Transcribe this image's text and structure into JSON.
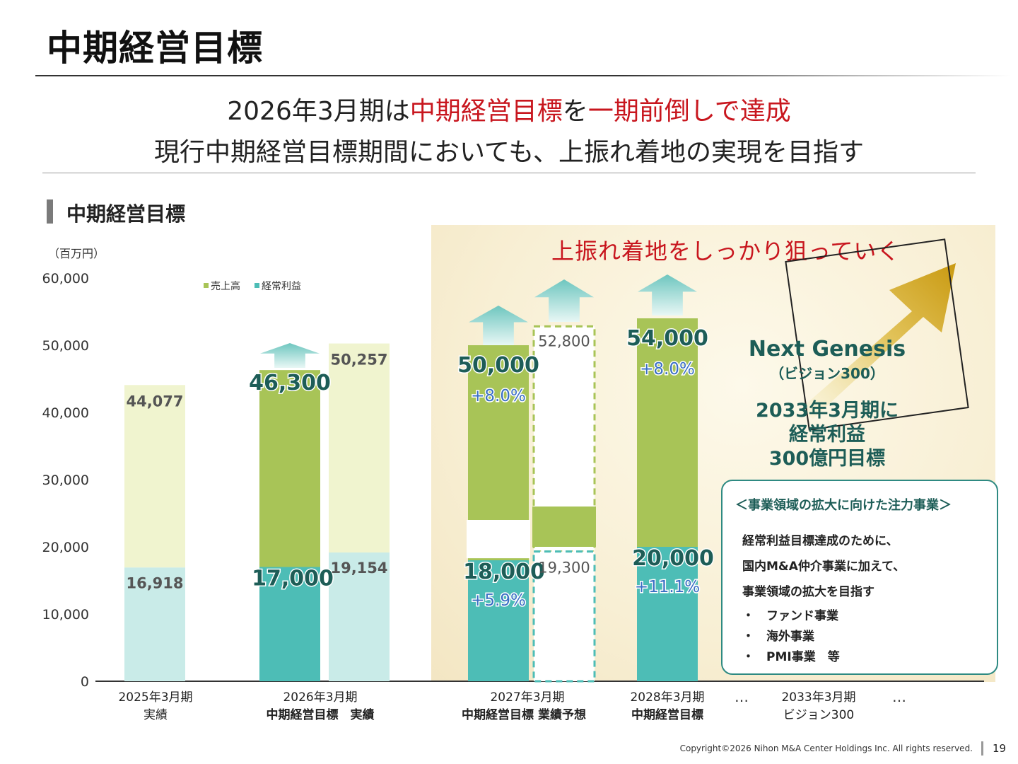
{
  "page_title": "中期経営目標",
  "headline": {
    "line1_a": "2026年3月期は",
    "line1_b": "中期経営目標",
    "line1_c": "を",
    "line1_d": "一期前倒しで達成",
    "line2": "現行中期経営目標期間においても、上振れ着地の実現を目指す"
  },
  "section_title": "中期経営目標",
  "upside_text": "上振れ着地をしっかり狙っていく",
  "next_genesis": {
    "title": "Next Genesis",
    "subtitle": "（ビジョン300）",
    "line1": "2033年3月期に",
    "line2": "経常利益",
    "line3": "300億円目標"
  },
  "focus_box": {
    "title": "＜事業領域の拡大に向けた注力事業＞",
    "lines": [
      "経常利益目標達成のために、",
      "国内M&A仲介事業に加えて、",
      "事業領域の拡大を目指す"
    ],
    "bullets": [
      "・　ファンド事業",
      "・　海外事業",
      "・　PMI事業　等"
    ]
  },
  "footer": "Copyright©2026 Nihon M&A Center Holdings Inc. All rights reserved.",
  "page_number": "19",
  "colors": {
    "sales_actual": "#f0f4cf",
    "sales_target": "#a8c457",
    "profit_actual": "#c9ebe8",
    "profit_target": "#4dbdb6",
    "arrow": "#7fd0ca",
    "accent_red": "#c8161e",
    "growth_blue": "#3a6fc4",
    "label_green": "#1d5d57"
  },
  "chart_data": {
    "type": "bar",
    "unit_label": "（百万円）",
    "ylim": [
      0,
      60000
    ],
    "y_ticks": [
      "0",
      "10,000",
      "20,000",
      "30,000",
      "40,000",
      "50,000",
      "60,000"
    ],
    "legend": [
      {
        "name": "売上高",
        "color": "#a8c457"
      },
      {
        "name": "経常利益",
        "color": "#4dbdb6"
      }
    ],
    "x_groups": [
      {
        "line1": "2025年3月期",
        "line2": "実績"
      },
      {
        "line1": "2026年3月期",
        "line2": "中期経営目標　実績"
      },
      {
        "line1": "2027年3月期",
        "line2": "中期経営目標  業績予想"
      },
      {
        "line1": "2028年3月期",
        "line2": "中期経営目標"
      },
      {
        "line1": "2033年3月期",
        "line2": "ビジョン300"
      }
    ],
    "ellipsis": [
      "…",
      "…"
    ],
    "bars": [
      {
        "group": "2025年3月期 実績",
        "kind": "actual",
        "sales": 44077,
        "profit": 16918,
        "sales_label": "44,077",
        "profit_label": "16,918"
      },
      {
        "group": "2026年3月期 中期経営目標",
        "kind": "target",
        "sales": 46300,
        "profit": 17000,
        "sales_label": "46,300",
        "profit_label": "17,000"
      },
      {
        "group": "2026年3月期 実績",
        "kind": "actual",
        "sales": 50257,
        "profit": 19154,
        "sales_label": "50,257",
        "profit_label": "19,154"
      },
      {
        "group": "2027年3月期 中期経営目標",
        "kind": "target",
        "sales": 50000,
        "profit": 18000,
        "sales_label": "50,000",
        "profit_label": "18,000",
        "sales_growth": "+8.0%",
        "profit_growth": "+5.9%"
      },
      {
        "group": "2027年3月期 業績予想",
        "kind": "forecast",
        "sales": 52800,
        "profit": 19300,
        "sales_label": "52,800",
        "profit_label": "19,300"
      },
      {
        "group": "2028年3月期 中期経営目標",
        "kind": "target",
        "sales": 54000,
        "profit": 20000,
        "sales_label": "54,000",
        "profit_label": "20,000",
        "sales_growth": "+8.0%",
        "profit_growth": "+11.1%"
      }
    ]
  }
}
